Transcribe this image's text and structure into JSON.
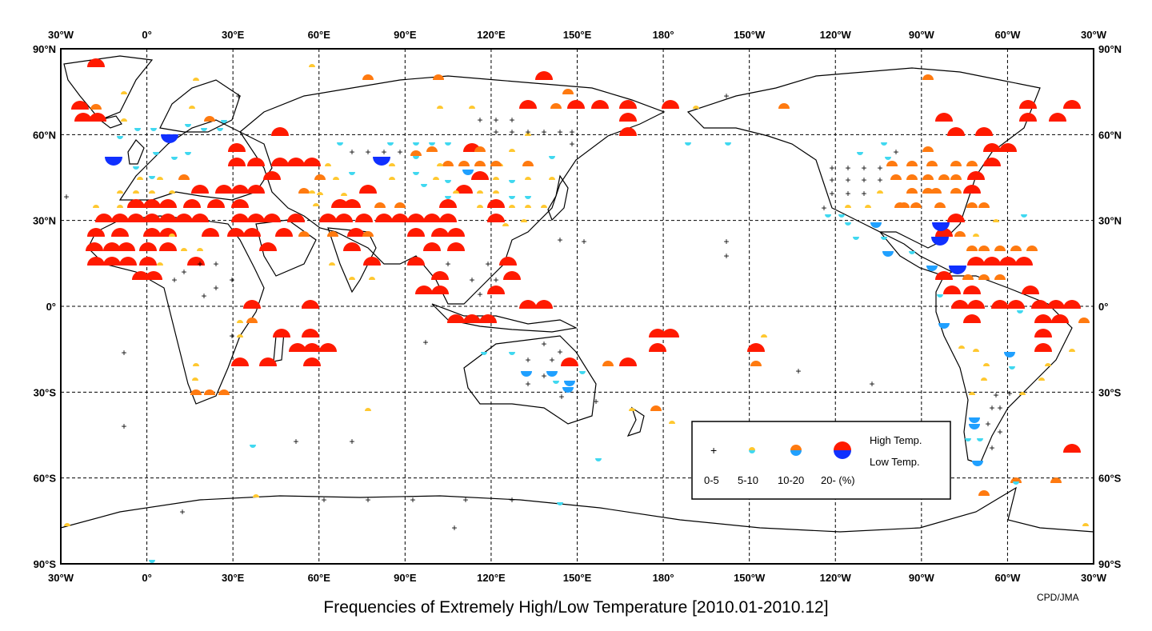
{
  "title": "Frequencies of Extremely High/Low Temperature [2010.01-2010.12]",
  "credit": "CPD/JMA",
  "lon_labels": [
    "30°W",
    "0°",
    "30°E",
    "60°E",
    "90°E",
    "120°E",
    "150°E",
    "180°",
    "150°W",
    "120°W",
    "90°W",
    "60°W",
    "30°W"
  ],
  "lat_labels": [
    "90°N",
    "60°N",
    "30°N",
    "0°",
    "30°S",
    "60°S",
    "90°S"
  ],
  "legend": {
    "classes": [
      "0-5",
      "5-10",
      "10-20",
      "20- (%)"
    ],
    "high_label": "High Temp.",
    "low_label": "Low Temp.",
    "colors": {
      "high": [
        "#ffc830",
        "#ff7a10",
        "#ff1a00"
      ],
      "low": [
        "#40d8f0",
        "#20a0ff",
        "#1030ff"
      ]
    }
  },
  "map": {
    "lon_range": [
      "30°W",
      "30°W (+360°)"
    ],
    "lat_range": [
      "90°S",
      "90°N"
    ],
    "marker_classes": {
      "plus": "0-5 %",
      "small_half_circle": "5-10 %",
      "medium_half_circle": "10-20 %",
      "large_half_circle": "20- %"
    }
  }
}
